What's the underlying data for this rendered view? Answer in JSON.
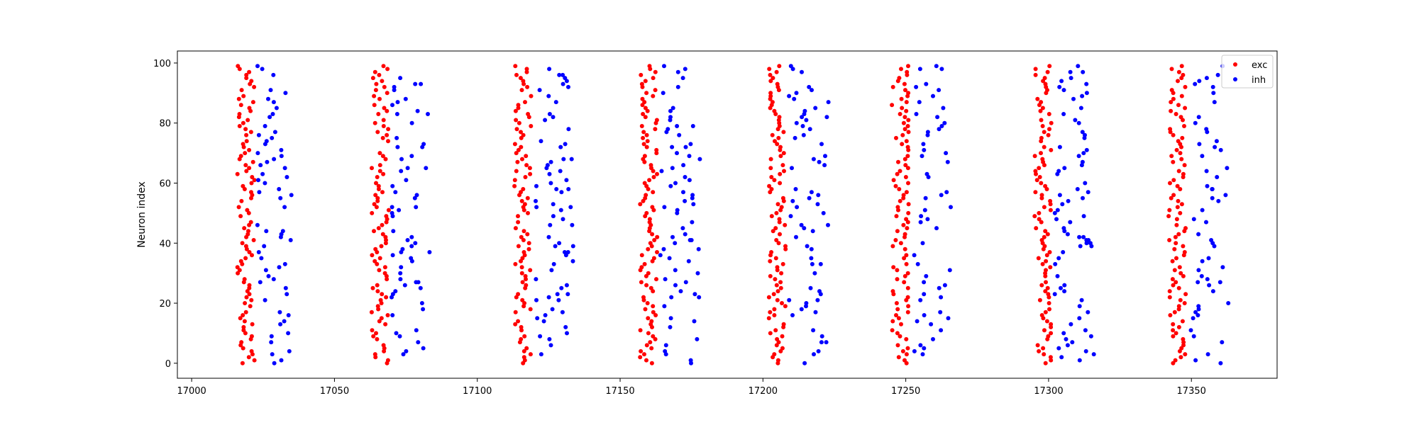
{
  "chart_data": {
    "type": "scatter",
    "title": "",
    "xlabel": "",
    "ylabel": "Neuron index",
    "xlim": [
      16995,
      17380
    ],
    "ylim": [
      -5,
      104
    ],
    "xticks": [
      17000,
      17050,
      17100,
      17150,
      17200,
      17250,
      17300,
      17350
    ],
    "yticks": [
      0,
      20,
      40,
      60,
      80,
      100
    ],
    "grid": false,
    "legend_position": "top-right",
    "burst_centers": [
      17019,
      17066,
      17116,
      17160,
      17205,
      17248,
      17298,
      17345
    ],
    "series": [
      {
        "name": "exc",
        "color": "#ff0000",
        "neuron_range": [
          0,
          99
        ],
        "points": []
      },
      {
        "name": "inh",
        "color": "#0000ff",
        "neuron_range": [
          0,
          99
        ],
        "points": []
      }
    ]
  }
}
